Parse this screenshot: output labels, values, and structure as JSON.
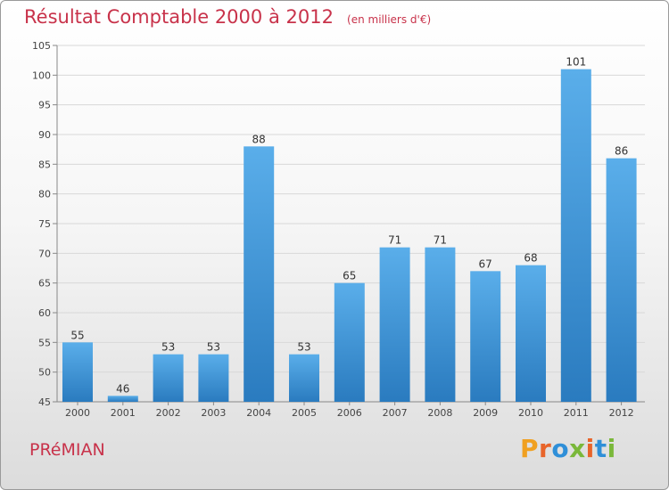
{
  "header": {
    "title": "Résultat Comptable 2000 à 2012",
    "unit": "(en milliers d'€)"
  },
  "footer": {
    "commune": "PRéMIAN",
    "brand": "Proxiti",
    "brand_letters": [
      "P",
      "r",
      "o",
      "x",
      "i",
      "t",
      "i"
    ]
  },
  "colors": {
    "title": "#c8324a",
    "bar_top": "#5aaeea",
    "bar_bottom": "#2a7bbf",
    "grid": "#d8d8d8",
    "axis": "#888888"
  },
  "chart_data": {
    "type": "bar",
    "title": "Résultat Comptable 2000 à 2012",
    "ylabel": "",
    "xlabel": "",
    "ylim": [
      45,
      105
    ],
    "yticks": [
      45,
      50,
      55,
      60,
      65,
      70,
      75,
      80,
      85,
      90,
      95,
      100,
      105
    ],
    "grid": true,
    "categories": [
      "2000",
      "2001",
      "2002",
      "2003",
      "2004",
      "2005",
      "2006",
      "2007",
      "2008",
      "2009",
      "2010",
      "2011",
      "2012"
    ],
    "values": [
      55,
      46,
      53,
      53,
      88,
      53,
      65,
      71,
      71,
      67,
      68,
      101,
      86
    ]
  }
}
